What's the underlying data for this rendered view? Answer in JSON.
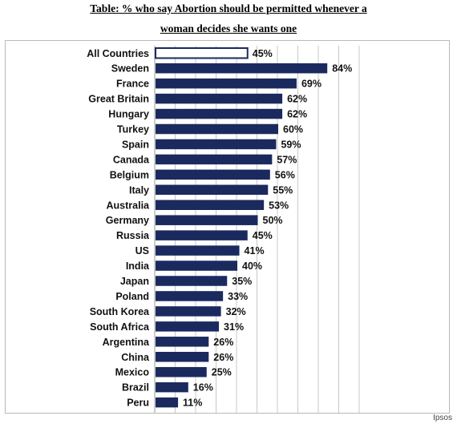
{
  "title_line1": "Table: % who say Abortion should be permitted whenever a",
  "title_line2": "woman decides she wants one",
  "source": "Ipsos",
  "colors": {
    "bar": "#1b2a5e",
    "highlight_fill": "#ffffff",
    "gridline": "#c8c8c8"
  },
  "chart_data": {
    "type": "bar",
    "orientation": "horizontal",
    "categories": [
      "All Countries",
      "Sweden",
      "France",
      "Great Britain",
      "Hungary",
      "Turkey",
      "Spain",
      "Canada",
      "Belgium",
      "Italy",
      "Australia",
      "Germany",
      "Russia",
      "US",
      "India",
      "Japan",
      "Poland",
      "South Korea",
      "South Africa",
      "Argentina",
      "China",
      "Mexico",
      "Brazil",
      "Peru"
    ],
    "values": [
      45,
      84,
      69,
      62,
      62,
      60,
      59,
      57,
      56,
      55,
      53,
      50,
      45,
      41,
      40,
      35,
      33,
      32,
      31,
      26,
      26,
      25,
      16,
      11
    ],
    "value_labels": [
      "45%",
      "84%",
      "69%",
      "62%",
      "62%",
      "60%",
      "59%",
      "57%",
      "56%",
      "55%",
      "53%",
      "50%",
      "45%",
      "41%",
      "40%",
      "35%",
      "33%",
      "32%",
      "31%",
      "26%",
      "26%",
      "25%",
      "16%",
      "11%"
    ],
    "highlighted_category": "All Countries",
    "xlim": [
      0,
      100
    ],
    "grid": true
  }
}
